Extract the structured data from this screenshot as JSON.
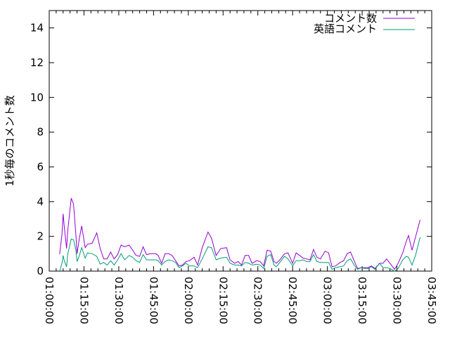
{
  "chart_data": {
    "type": "line",
    "title": "",
    "xlabel": "",
    "ylabel": "1秒毎のコメント数",
    "xlim": [
      "01:00:00",
      "03:45:00"
    ],
    "ylim": [
      0,
      15
    ],
    "x_ticks": [
      "01:00:00",
      "01:15:00",
      "01:30:00",
      "01:45:00",
      "02:00:00",
      "02:15:00",
      "02:30:00",
      "02:45:00",
      "03:00:00",
      "03:15:00",
      "03:30:00",
      "03:45:00"
    ],
    "y_ticks": [
      "0",
      "2",
      "4",
      "6",
      "8",
      "10",
      "12",
      "14"
    ],
    "grid": false,
    "legend_position": "top-right",
    "x": [
      "01:04:30",
      "01:05:30",
      "01:06:00",
      "01:06:30",
      "01:07:30",
      "01:08:00",
      "01:09:30",
      "01:10:30",
      "01:11:30",
      "01:12:00",
      "01:13:00",
      "01:14:00",
      "01:15:30",
      "01:16:30",
      "01:18:30",
      "01:20:30",
      "01:22:00",
      "01:23:30",
      "01:25:00",
      "01:26:30",
      "01:28:00",
      "01:29:30",
      "01:31:00",
      "01:32:30",
      "01:34:30",
      "01:36:00",
      "01:37:30",
      "01:39:00",
      "01:40:30",
      "01:42:00",
      "01:43:30",
      "01:46:00",
      "01:47:00",
      "01:48:30",
      "01:50:00",
      "01:51:30",
      "01:53:00",
      "01:54:30",
      "01:56:00",
      "01:57:30",
      "01:59:00",
      "02:00:30",
      "02:02:30",
      "02:04:00",
      "02:06:00",
      "02:08:30",
      "02:10:00",
      "02:12:00",
      "02:14:00",
      "02:16:30",
      "02:18:00",
      "02:20:00",
      "02:21:30",
      "02:23:00",
      "02:24:30",
      "02:26:00",
      "02:27:30",
      "02:29:30",
      "02:31:00",
      "02:32:30",
      "02:34:00",
      "02:35:30",
      "02:37:00",
      "02:38:00",
      "02:39:30",
      "02:41:30",
      "02:43:00",
      "02:45:00",
      "02:46:30",
      "02:48:00",
      "02:49:30",
      "02:51:00",
      "02:52:30",
      "02:54:00",
      "02:55:30",
      "02:57:00",
      "02:59:00",
      "03:00:30",
      "03:02:00",
      "03:03:30",
      "03:05:30",
      "03:07:00",
      "03:08:30",
      "03:10:00",
      "03:11:30",
      "03:13:00",
      "03:14:30",
      "03:16:00",
      "03:17:30",
      "03:19:00",
      "03:20:30",
      "03:22:30",
      "03:24:00",
      "03:25:30",
      "03:27:00",
      "03:29:00",
      "03:30:30",
      "03:32:30",
      "03:34:00",
      "03:35:00",
      "03:36:30",
      "03:38:00",
      "03:40:00"
    ],
    "series": [
      {
        "name": "コメント数",
        "color": "#9400d3",
        "values": [
          0.97,
          2.1,
          3.3,
          2.55,
          1.3,
          2.35,
          4.2,
          3.85,
          2.1,
          1.0,
          1.9,
          2.6,
          1.35,
          1.55,
          1.6,
          2.2,
          1.3,
          0.7,
          0.7,
          1.1,
          0.7,
          0.95,
          1.5,
          1.4,
          1.5,
          1.2,
          0.9,
          0.85,
          1.4,
          0.95,
          1.0,
          1.0,
          0.9,
          0.45,
          1.0,
          1.0,
          0.9,
          0.6,
          0.3,
          0.35,
          0.55,
          0.6,
          0.8,
          0.35,
          1.35,
          2.25,
          1.9,
          0.9,
          1.3,
          1.35,
          0.65,
          0.45,
          0.55,
          0.35,
          0.9,
          0.9,
          0.45,
          0.6,
          0.55,
          0.3,
          1.2,
          1.15,
          0.55,
          0.45,
          0.65,
          1.0,
          1.05,
          0.45,
          1.05,
          0.9,
          0.75,
          0.7,
          0.65,
          1.25,
          0.8,
          0.7,
          1.15,
          1.05,
          0.25,
          0.3,
          0.5,
          0.6,
          1.0,
          1.1,
          0.6,
          0.15,
          0.2,
          0.2,
          0.2,
          0.3,
          0.15,
          0.45,
          0.45,
          0.7,
          0.45,
          0.1,
          0.45,
          1.05,
          1.7,
          2.05,
          1.2,
          1.95,
          2.95
        ]
      },
      {
        "name": "英語コメント",
        "color": "#009e73",
        "values": [
          0,
          0.45,
          0.9,
          0.6,
          0.25,
          1.0,
          1.85,
          1.8,
          1.2,
          0.55,
          0.9,
          1.35,
          0.75,
          1.05,
          1.0,
          0.85,
          0.4,
          0.5,
          0.35,
          0.6,
          0.35,
          0.65,
          1.0,
          0.65,
          0.9,
          0.8,
          0.6,
          0.5,
          0.95,
          0.65,
          0.65,
          0.65,
          0.6,
          0.35,
          0.55,
          0.65,
          0.6,
          0.5,
          0.2,
          0.3,
          0.45,
          0.3,
          0.3,
          0.2,
          0.7,
          1.4,
          1.35,
          0.65,
          0.75,
          0.8,
          0.45,
          0.35,
          0.35,
          0.3,
          0.5,
          0.45,
          0.35,
          0.4,
          0.35,
          0.15,
          0.85,
          0.95,
          0.35,
          0.25,
          0.5,
          0.85,
          0.7,
          0.3,
          0.6,
          0.6,
          0.65,
          0.55,
          0.55,
          0.95,
          0.55,
          0.5,
          0.5,
          0.5,
          0.1,
          0.2,
          0.25,
          0.3,
          0.6,
          0.7,
          0.35,
          0.1,
          0.2,
          0.15,
          0.15,
          0.25,
          0.1,
          0.45,
          0.2,
          0.2,
          0.15,
          0,
          0.15,
          0.65,
          0.85,
          0.8,
          0.35,
          0.9,
          1.95
        ]
      }
    ]
  }
}
